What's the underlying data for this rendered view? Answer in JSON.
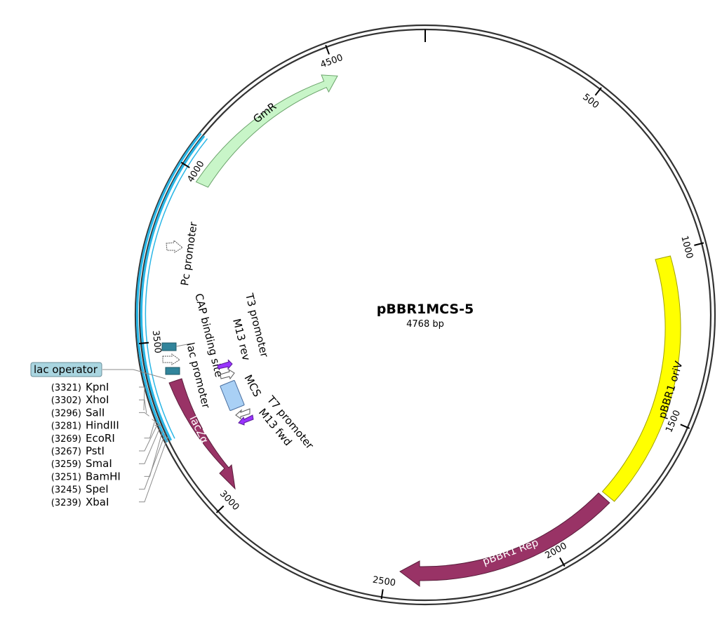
{
  "plasmid": {
    "name": "pBBR1MCS-5",
    "size_label": "4768 bp",
    "length_bp": 4768
  },
  "ticks": [
    {
      "bp": 500,
      "label": "500"
    },
    {
      "bp": 1000,
      "label": "1000"
    },
    {
      "bp": 1500,
      "label": "1500"
    },
    {
      "bp": 2000,
      "label": "2000"
    },
    {
      "bp": 2500,
      "label": "2500"
    },
    {
      "bp": 3000,
      "label": "3000"
    },
    {
      "bp": 3500,
      "label": "3500"
    },
    {
      "bp": 4000,
      "label": "4000"
    },
    {
      "bp": 4500,
      "label": "4500"
    }
  ],
  "features": {
    "gmr": {
      "label": "GmR",
      "color": "#c8f5c8",
      "stroke": "#6aa36a"
    },
    "oriv": {
      "label": "pBBR1 oriV",
      "color": "#ffff00",
      "stroke": "#a0a000"
    },
    "rep": {
      "label": "pBBR1 Rep",
      "color": "#993366",
      "stroke": "#5a1e3c"
    },
    "lacz": {
      "label": "lacZα",
      "color": "#993366",
      "stroke": "#5a1e3c"
    },
    "pc_promoter": {
      "label": "Pc promoter"
    },
    "cap_site": {
      "label": "CAP binding site",
      "color": "#31849b"
    },
    "lac_promoter": {
      "label": "lac promoter"
    },
    "lac_operator": {
      "label": "lac operator",
      "color": "#a9d5e0"
    },
    "t3_promoter": {
      "label": "T3 promoter"
    },
    "m13_rev": {
      "label": "M13 rev",
      "color": "#9933ff"
    },
    "mcs": {
      "label": "MCS",
      "color": "#a9d0f5"
    },
    "t7_promoter": {
      "label": "T7 promoter"
    },
    "m13_fwd": {
      "label": "M13 fwd",
      "color": "#9933ff"
    }
  },
  "restriction_sites": [
    {
      "pos": "(3321)",
      "name": "KpnI"
    },
    {
      "pos": "(3302)",
      "name": "XhoI"
    },
    {
      "pos": "(3296)",
      "name": "SalI"
    },
    {
      "pos": "(3281)",
      "name": "HindIII"
    },
    {
      "pos": "(3269)",
      "name": "EcoRI"
    },
    {
      "pos": "(3267)",
      "name": "PstI"
    },
    {
      "pos": "(3259)",
      "name": "SmaI"
    },
    {
      "pos": "(3251)",
      "name": "BamHI"
    },
    {
      "pos": "(3245)",
      "name": "SpeI"
    },
    {
      "pos": "(3239)",
      "name": "XbaI"
    }
  ],
  "colors": {
    "backbone": "#333333",
    "highlight_arc": "#29b6e6"
  }
}
